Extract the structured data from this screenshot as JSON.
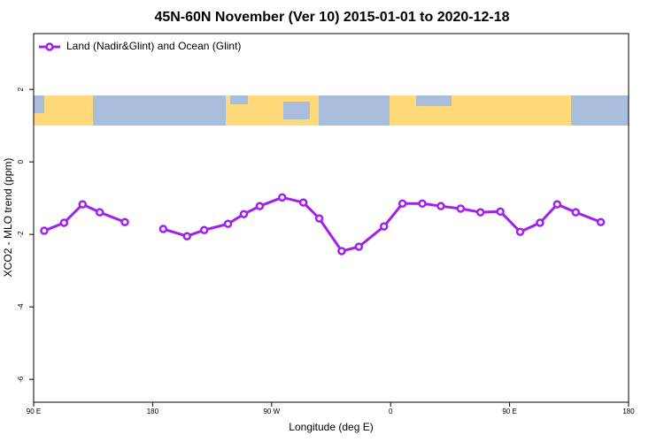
{
  "chart_data": {
    "type": "line",
    "title": "45N-60N November (Ver 10)   2015-01-01 to 2020-12-18",
    "xlabel": "Longitude (deg E)",
    "ylabel": "XCO2 - MLO trend (ppm)",
    "x": [
      98,
      113,
      127,
      140,
      159,
      173,
      188,
      206,
      219,
      237,
      249,
      261,
      278,
      294,
      306,
      323,
      336,
      355,
      369,
      384,
      398,
      413,
      428,
      443,
      458,
      473,
      486,
      500,
      519
    ],
    "series": [
      {
        "name": "Land (Nadir&Glint) and Ocean (Glint)",
        "color": "#a020f0",
        "values": [
          -1.9,
          -1.68,
          -1.17,
          -1.39,
          -1.66,
          null,
          -1.85,
          -2.05,
          -1.88,
          -1.71,
          -1.44,
          -1.22,
          -0.98,
          -1.12,
          -1.56,
          -2.46,
          -2.34,
          -1.78,
          -1.15,
          -1.15,
          -1.22,
          -1.29,
          -1.39,
          -1.37,
          -1.93,
          -1.68,
          -1.17,
          -1.39,
          -1.66
        ]
      }
    ],
    "xlim": [
      90,
      540
    ],
    "xticks": [
      {
        "value": 90,
        "label": "90 E"
      },
      180,
      {
        "value": 270,
        "label": "90 W"
      },
      {
        "value": 360,
        "label": "0"
      },
      {
        "value": 450,
        "label": "90 E"
      },
      {
        "value": 540,
        "label": "180"
      }
    ],
    "ylim": [
      -6.63,
      3.54
    ],
    "yticks": [
      2,
      0,
      -2,
      -4,
      -6
    ],
    "legend": "top-left"
  }
}
